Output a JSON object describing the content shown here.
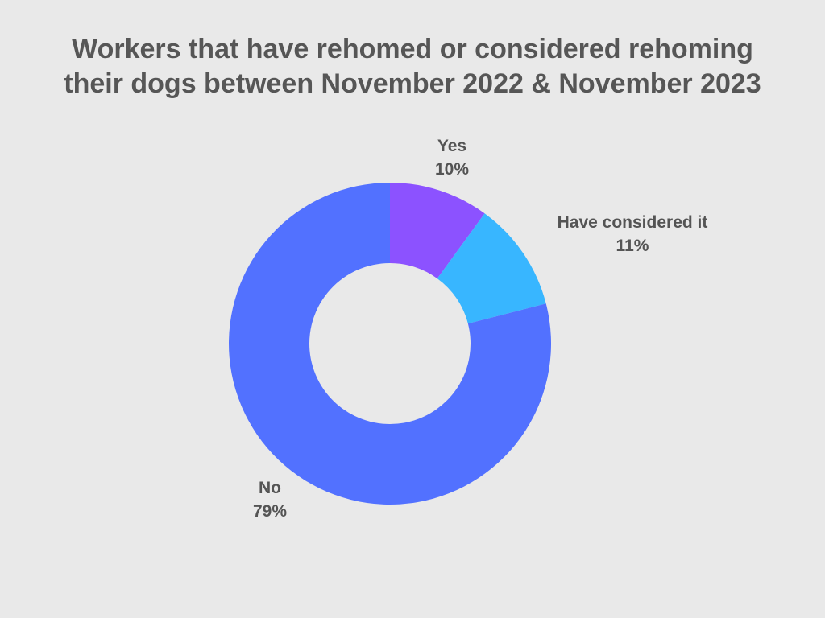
{
  "theme": {
    "background_color": "#E9E9E9",
    "title_color": "#565656",
    "label_color": "#545454"
  },
  "chart_data": {
    "type": "pie",
    "variant": "donut",
    "title": "Workers that have rehomed or considered rehoming their dogs between November 2022 & November 2023",
    "title_lines": [
      "Workers that have rehomed or considered rehoming",
      "their dogs between November 2022 & November 2023"
    ],
    "unit": "%",
    "start_angle_deg": 0,
    "direction": "clockwise",
    "inner_radius_ratio": 0.5,
    "legend": "none",
    "categories": [
      "Yes",
      "Have considered it",
      "No"
    ],
    "values": [
      10,
      11,
      79
    ],
    "segments": [
      {
        "label": "Yes",
        "value": 10,
        "value_label": "10%",
        "color": "#8C52FF"
      },
      {
        "label": "Have considered it",
        "value": 11,
        "value_label": "11%",
        "color": "#38B6FF"
      },
      {
        "label": "No",
        "value": 79,
        "value_label": "79%",
        "color": "#5271FF"
      }
    ]
  }
}
